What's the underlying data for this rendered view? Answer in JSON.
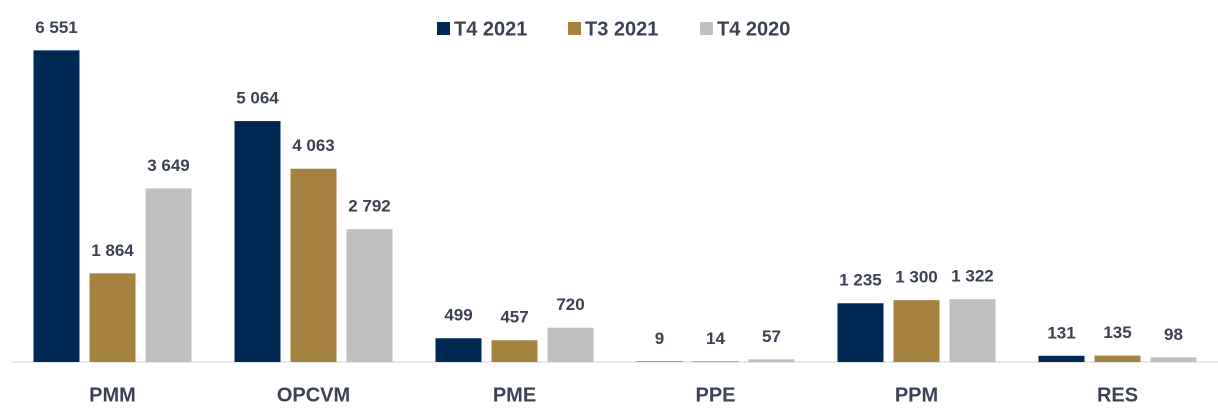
{
  "chart_data": {
    "type": "bar",
    "categories": [
      "PMM",
      "OPCVM",
      "PME",
      "PPE",
      "PPM",
      "RES"
    ],
    "series": [
      {
        "name": "T4 2021",
        "color": "#002855",
        "values": [
          6551,
          5064,
          499,
          9,
          1235,
          131
        ],
        "value_labels": [
          "6 551",
          "5 064",
          "499",
          "9",
          "1 235",
          "131"
        ]
      },
      {
        "name": "T3 2021",
        "color": "#a5823f",
        "values": [
          1864,
          4063,
          457,
          14,
          1300,
          135
        ],
        "value_labels": [
          "1 864",
          "4 063",
          "457",
          "14",
          "1 300",
          "135"
        ]
      },
      {
        "name": "T4 2020",
        "color": "#bfbfbf",
        "values": [
          3649,
          2792,
          720,
          57,
          1322,
          98
        ],
        "value_labels": [
          "3 649",
          "2 792",
          "720",
          "57",
          "1 322",
          "98"
        ]
      }
    ],
    "ylim": [
      0,
      7000
    ],
    "legend": "top"
  }
}
